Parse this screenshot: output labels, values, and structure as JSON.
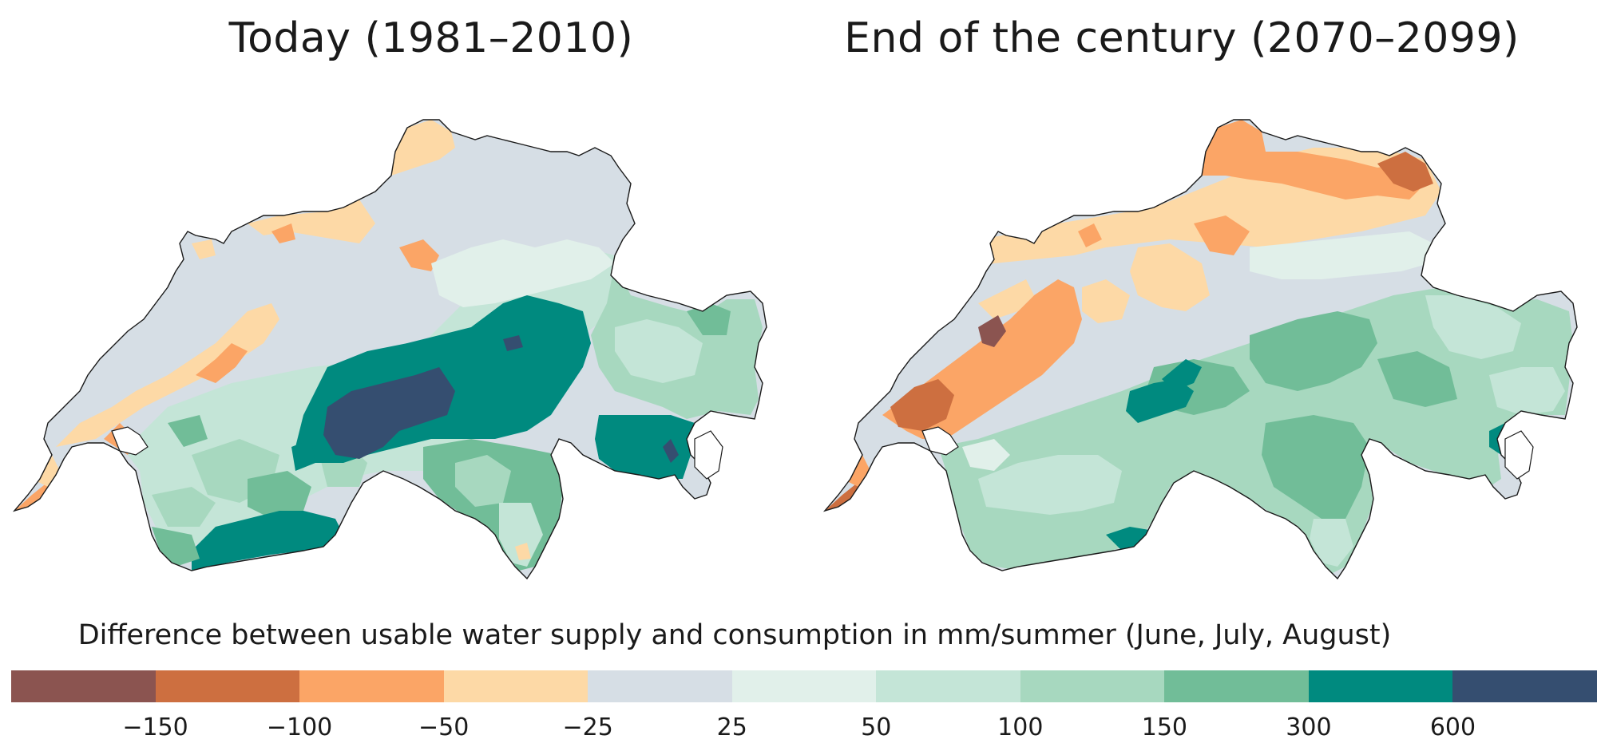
{
  "panels": {
    "left_title": "Today (1981–2010)",
    "right_title": "End of the century (2070–2099)"
  },
  "legend": {
    "title": "Difference between usable water supply and consumption in mm/summer (June, July, August)",
    "classes": [
      {
        "color": "#8b5450"
      },
      {
        "color": "#cd6f40"
      },
      {
        "color": "#fba566"
      },
      {
        "color": "#fdd9a6"
      },
      {
        "color": "#d6dee5"
      },
      {
        "color": "#e1f0ea"
      },
      {
        "color": "#c4e5d7"
      },
      {
        "color": "#a7d8bf"
      },
      {
        "color": "#71bd98"
      },
      {
        "color": "#008a7f"
      },
      {
        "color": "#354e70"
      }
    ],
    "ticks": [
      "−150",
      "−100",
      "−50",
      "−25",
      "25",
      "50",
      "100",
      "150",
      "300",
      "600"
    ]
  }
}
